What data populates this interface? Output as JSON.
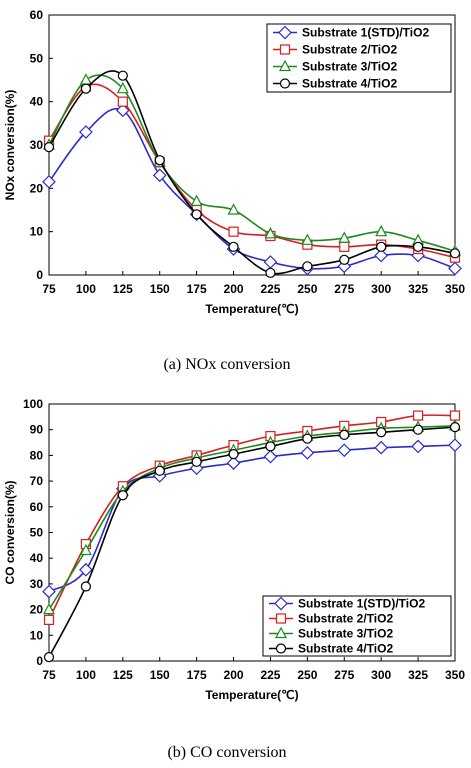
{
  "chart_data": [
    {
      "type": "line",
      "title": "",
      "caption": "(a)  NOx  conversion",
      "xlabel": "Temperature(℃)",
      "ylabel": "NOx conversion(%)",
      "ylim": [
        0,
        60
      ],
      "yticks": [
        0,
        10,
        20,
        30,
        40,
        50,
        60
      ],
      "x": [
        75,
        100,
        125,
        150,
        175,
        200,
        225,
        250,
        275,
        300,
        325,
        350
      ],
      "legend_position": "top-right",
      "series": [
        {
          "name": "Substrate 1(STD)/TiO2",
          "color": "#2a2acf",
          "marker": "diamond",
          "values": [
            21.5,
            33,
            38,
            23,
            14,
            6,
            3,
            1.5,
            2,
            4.5,
            4.5,
            1.5
          ]
        },
        {
          "name": "Substrate  2/TiO2",
          "color": "#d42020",
          "marker": "square",
          "values": [
            31,
            43.5,
            40,
            26,
            15,
            10,
            9,
            7,
            6.5,
            7,
            6,
            4
          ]
        },
        {
          "name": "Substrate  3/TiO2",
          "color": "#1e8a1e",
          "marker": "triangle",
          "values": [
            30,
            45,
            43,
            26,
            17,
            15,
            9.5,
            8,
            8.5,
            10,
            8,
            5.5
          ]
        },
        {
          "name": "Substrate 4/TiO2",
          "color": "#000000",
          "marker": "circle",
          "values": [
            29.5,
            43,
            46,
            26.5,
            14,
            6.5,
            0.5,
            2,
            3.5,
            6.5,
            6.5,
            5
          ]
        }
      ]
    },
    {
      "type": "line",
      "title": "",
      "caption": "(b)  CO  conversion",
      "xlabel": "Temperature(℃)",
      "ylabel": "CO conversion(%)",
      "ylim": [
        0,
        100
      ],
      "yticks": [
        0,
        10,
        20,
        30,
        40,
        50,
        60,
        70,
        80,
        90,
        100
      ],
      "x": [
        75,
        100,
        125,
        150,
        175,
        200,
        225,
        250,
        275,
        300,
        325,
        350
      ],
      "legend_position": "bottom-right",
      "series": [
        {
          "name": "Substrate 1(STD)/TiO2",
          "color": "#2a2acf",
          "marker": "diamond",
          "values": [
            27,
            35.5,
            67,
            72,
            75,
            77,
            79.5,
            81,
            82,
            83,
            83.5,
            84
          ]
        },
        {
          "name": "Substrate  2/TiO2",
          "color": "#d42020",
          "marker": "square",
          "values": [
            16,
            45.5,
            68,
            76,
            80,
            84,
            87.5,
            89.5,
            91.5,
            93,
            95.5,
            95.5
          ]
        },
        {
          "name": "Substrate  3/TiO2",
          "color": "#1e8a1e",
          "marker": "triangle",
          "values": [
            20,
            43,
            66,
            75,
            79,
            82,
            85,
            87.5,
            89,
            90.5,
            91,
            91.5
          ]
        },
        {
          "name": "Substrate 4/TiO2",
          "color": "#000000",
          "marker": "circle",
          "values": [
            1.5,
            29,
            64.5,
            74,
            77.5,
            80.5,
            83.5,
            86.5,
            88,
            89,
            90,
            91
          ]
        }
      ]
    }
  ]
}
